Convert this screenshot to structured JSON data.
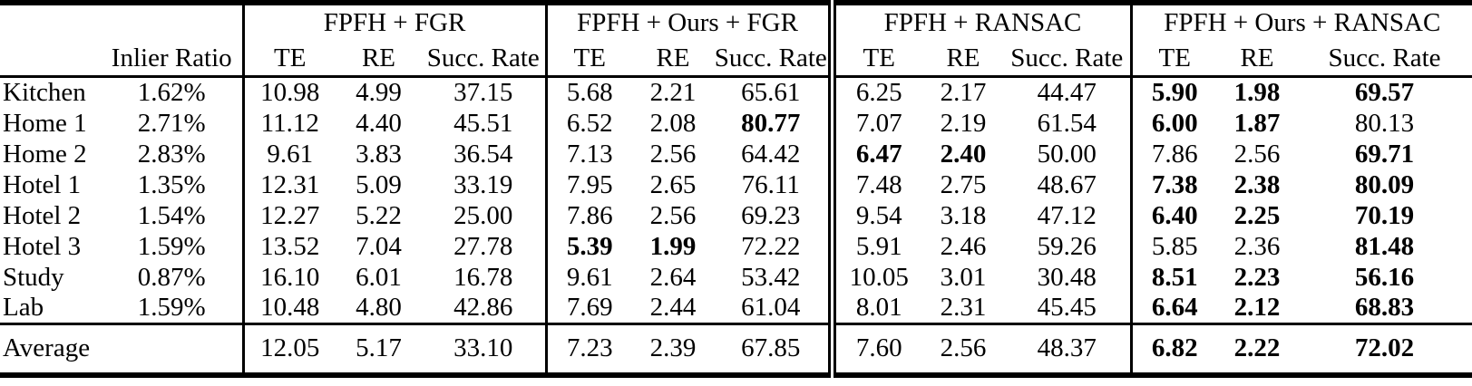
{
  "colors": {
    "background": "#ffffff",
    "text": "#000000",
    "rule": "#000000"
  },
  "table": {
    "groups": [
      {
        "label": "FPFH + FGR"
      },
      {
        "label": "FPFH + Ours + FGR"
      },
      {
        "label": "FPFH + RANSAC"
      },
      {
        "label": "FPFH + Ours + RANSAC"
      }
    ],
    "col_headers": {
      "inlier": "Inlier Ratio",
      "te": "TE",
      "re": "RE",
      "succ": "Succ. Rate"
    },
    "rows": [
      {
        "name": "Kitchen",
        "inlier": "1.62%",
        "cells": [
          {
            "v": "10.98",
            "b": false
          },
          {
            "v": "4.99",
            "b": false
          },
          {
            "v": "37.15",
            "b": false
          },
          {
            "v": "5.68",
            "b": false
          },
          {
            "v": "2.21",
            "b": false
          },
          {
            "v": "65.61",
            "b": false
          },
          {
            "v": "6.25",
            "b": false
          },
          {
            "v": "2.17",
            "b": false
          },
          {
            "v": "44.47",
            "b": false
          },
          {
            "v": "5.90",
            "b": true
          },
          {
            "v": "1.98",
            "b": true
          },
          {
            "v": "69.57",
            "b": true
          }
        ]
      },
      {
        "name": "Home 1",
        "inlier": "2.71%",
        "cells": [
          {
            "v": "11.12",
            "b": false
          },
          {
            "v": "4.40",
            "b": false
          },
          {
            "v": "45.51",
            "b": false
          },
          {
            "v": "6.52",
            "b": false
          },
          {
            "v": "2.08",
            "b": false
          },
          {
            "v": "80.77",
            "b": true
          },
          {
            "v": "7.07",
            "b": false
          },
          {
            "v": "2.19",
            "b": false
          },
          {
            "v": "61.54",
            "b": false
          },
          {
            "v": "6.00",
            "b": true
          },
          {
            "v": "1.87",
            "b": true
          },
          {
            "v": "80.13",
            "b": false
          }
        ]
      },
      {
        "name": "Home 2",
        "inlier": "2.83%",
        "cells": [
          {
            "v": "9.61",
            "b": false
          },
          {
            "v": "3.83",
            "b": false
          },
          {
            "v": "36.54",
            "b": false
          },
          {
            "v": "7.13",
            "b": false
          },
          {
            "v": "2.56",
            "b": false
          },
          {
            "v": "64.42",
            "b": false
          },
          {
            "v": "6.47",
            "b": true
          },
          {
            "v": "2.40",
            "b": true
          },
          {
            "v": "50.00",
            "b": false
          },
          {
            "v": "7.86",
            "b": false
          },
          {
            "v": "2.56",
            "b": false
          },
          {
            "v": "69.71",
            "b": true
          }
        ]
      },
      {
        "name": "Hotel 1",
        "inlier": "1.35%",
        "cells": [
          {
            "v": "12.31",
            "b": false
          },
          {
            "v": "5.09",
            "b": false
          },
          {
            "v": "33.19",
            "b": false
          },
          {
            "v": "7.95",
            "b": false
          },
          {
            "v": "2.65",
            "b": false
          },
          {
            "v": "76.11",
            "b": false
          },
          {
            "v": "7.48",
            "b": false
          },
          {
            "v": "2.75",
            "b": false
          },
          {
            "v": "48.67",
            "b": false
          },
          {
            "v": "7.38",
            "b": true
          },
          {
            "v": "2.38",
            "b": true
          },
          {
            "v": "80.09",
            "b": true
          }
        ]
      },
      {
        "name": "Hotel 2",
        "inlier": "1.54%",
        "cells": [
          {
            "v": "12.27",
            "b": false
          },
          {
            "v": "5.22",
            "b": false
          },
          {
            "v": "25.00",
            "b": false
          },
          {
            "v": "7.86",
            "b": false
          },
          {
            "v": "2.56",
            "b": false
          },
          {
            "v": "69.23",
            "b": false
          },
          {
            "v": "9.54",
            "b": false
          },
          {
            "v": "3.18",
            "b": false
          },
          {
            "v": "47.12",
            "b": false
          },
          {
            "v": "6.40",
            "b": true
          },
          {
            "v": "2.25",
            "b": true
          },
          {
            "v": "70.19",
            "b": true
          }
        ]
      },
      {
        "name": "Hotel 3",
        "inlier": "1.59%",
        "cells": [
          {
            "v": "13.52",
            "b": false
          },
          {
            "v": "7.04",
            "b": false
          },
          {
            "v": "27.78",
            "b": false
          },
          {
            "v": "5.39",
            "b": true
          },
          {
            "v": "1.99",
            "b": true
          },
          {
            "v": "72.22",
            "b": false
          },
          {
            "v": "5.91",
            "b": false
          },
          {
            "v": "2.46",
            "b": false
          },
          {
            "v": "59.26",
            "b": false
          },
          {
            "v": "5.85",
            "b": false
          },
          {
            "v": "2.36",
            "b": false
          },
          {
            "v": "81.48",
            "b": true
          }
        ]
      },
      {
        "name": "Study",
        "inlier": "0.87%",
        "cells": [
          {
            "v": "16.10",
            "b": false
          },
          {
            "v": "6.01",
            "b": false
          },
          {
            "v": "16.78",
            "b": false
          },
          {
            "v": "9.61",
            "b": false
          },
          {
            "v": "2.64",
            "b": false
          },
          {
            "v": "53.42",
            "b": false
          },
          {
            "v": "10.05",
            "b": false
          },
          {
            "v": "3.01",
            "b": false
          },
          {
            "v": "30.48",
            "b": false
          },
          {
            "v": "8.51",
            "b": true
          },
          {
            "v": "2.23",
            "b": true
          },
          {
            "v": "56.16",
            "b": true
          }
        ]
      },
      {
        "name": "Lab",
        "inlier": "1.59%",
        "cells": [
          {
            "v": "10.48",
            "b": false
          },
          {
            "v": "4.80",
            "b": false
          },
          {
            "v": "42.86",
            "b": false
          },
          {
            "v": "7.69",
            "b": false
          },
          {
            "v": "2.44",
            "b": false
          },
          {
            "v": "61.04",
            "b": false
          },
          {
            "v": "8.01",
            "b": false
          },
          {
            "v": "2.31",
            "b": false
          },
          {
            "v": "45.45",
            "b": false
          },
          {
            "v": "6.64",
            "b": true
          },
          {
            "v": "2.12",
            "b": true
          },
          {
            "v": "68.83",
            "b": true
          }
        ]
      }
    ],
    "average": {
      "name": "Average",
      "inlier": "",
      "cells": [
        {
          "v": "12.05",
          "b": false
        },
        {
          "v": "5.17",
          "b": false
        },
        {
          "v": "33.10",
          "b": false
        },
        {
          "v": "7.23",
          "b": false
        },
        {
          "v": "2.39",
          "b": false
        },
        {
          "v": "67.85",
          "b": false
        },
        {
          "v": "7.60",
          "b": false
        },
        {
          "v": "2.56",
          "b": false
        },
        {
          "v": "48.37",
          "b": false
        },
        {
          "v": "6.82",
          "b": true
        },
        {
          "v": "2.22",
          "b": true
        },
        {
          "v": "72.02",
          "b": true
        }
      ]
    }
  }
}
